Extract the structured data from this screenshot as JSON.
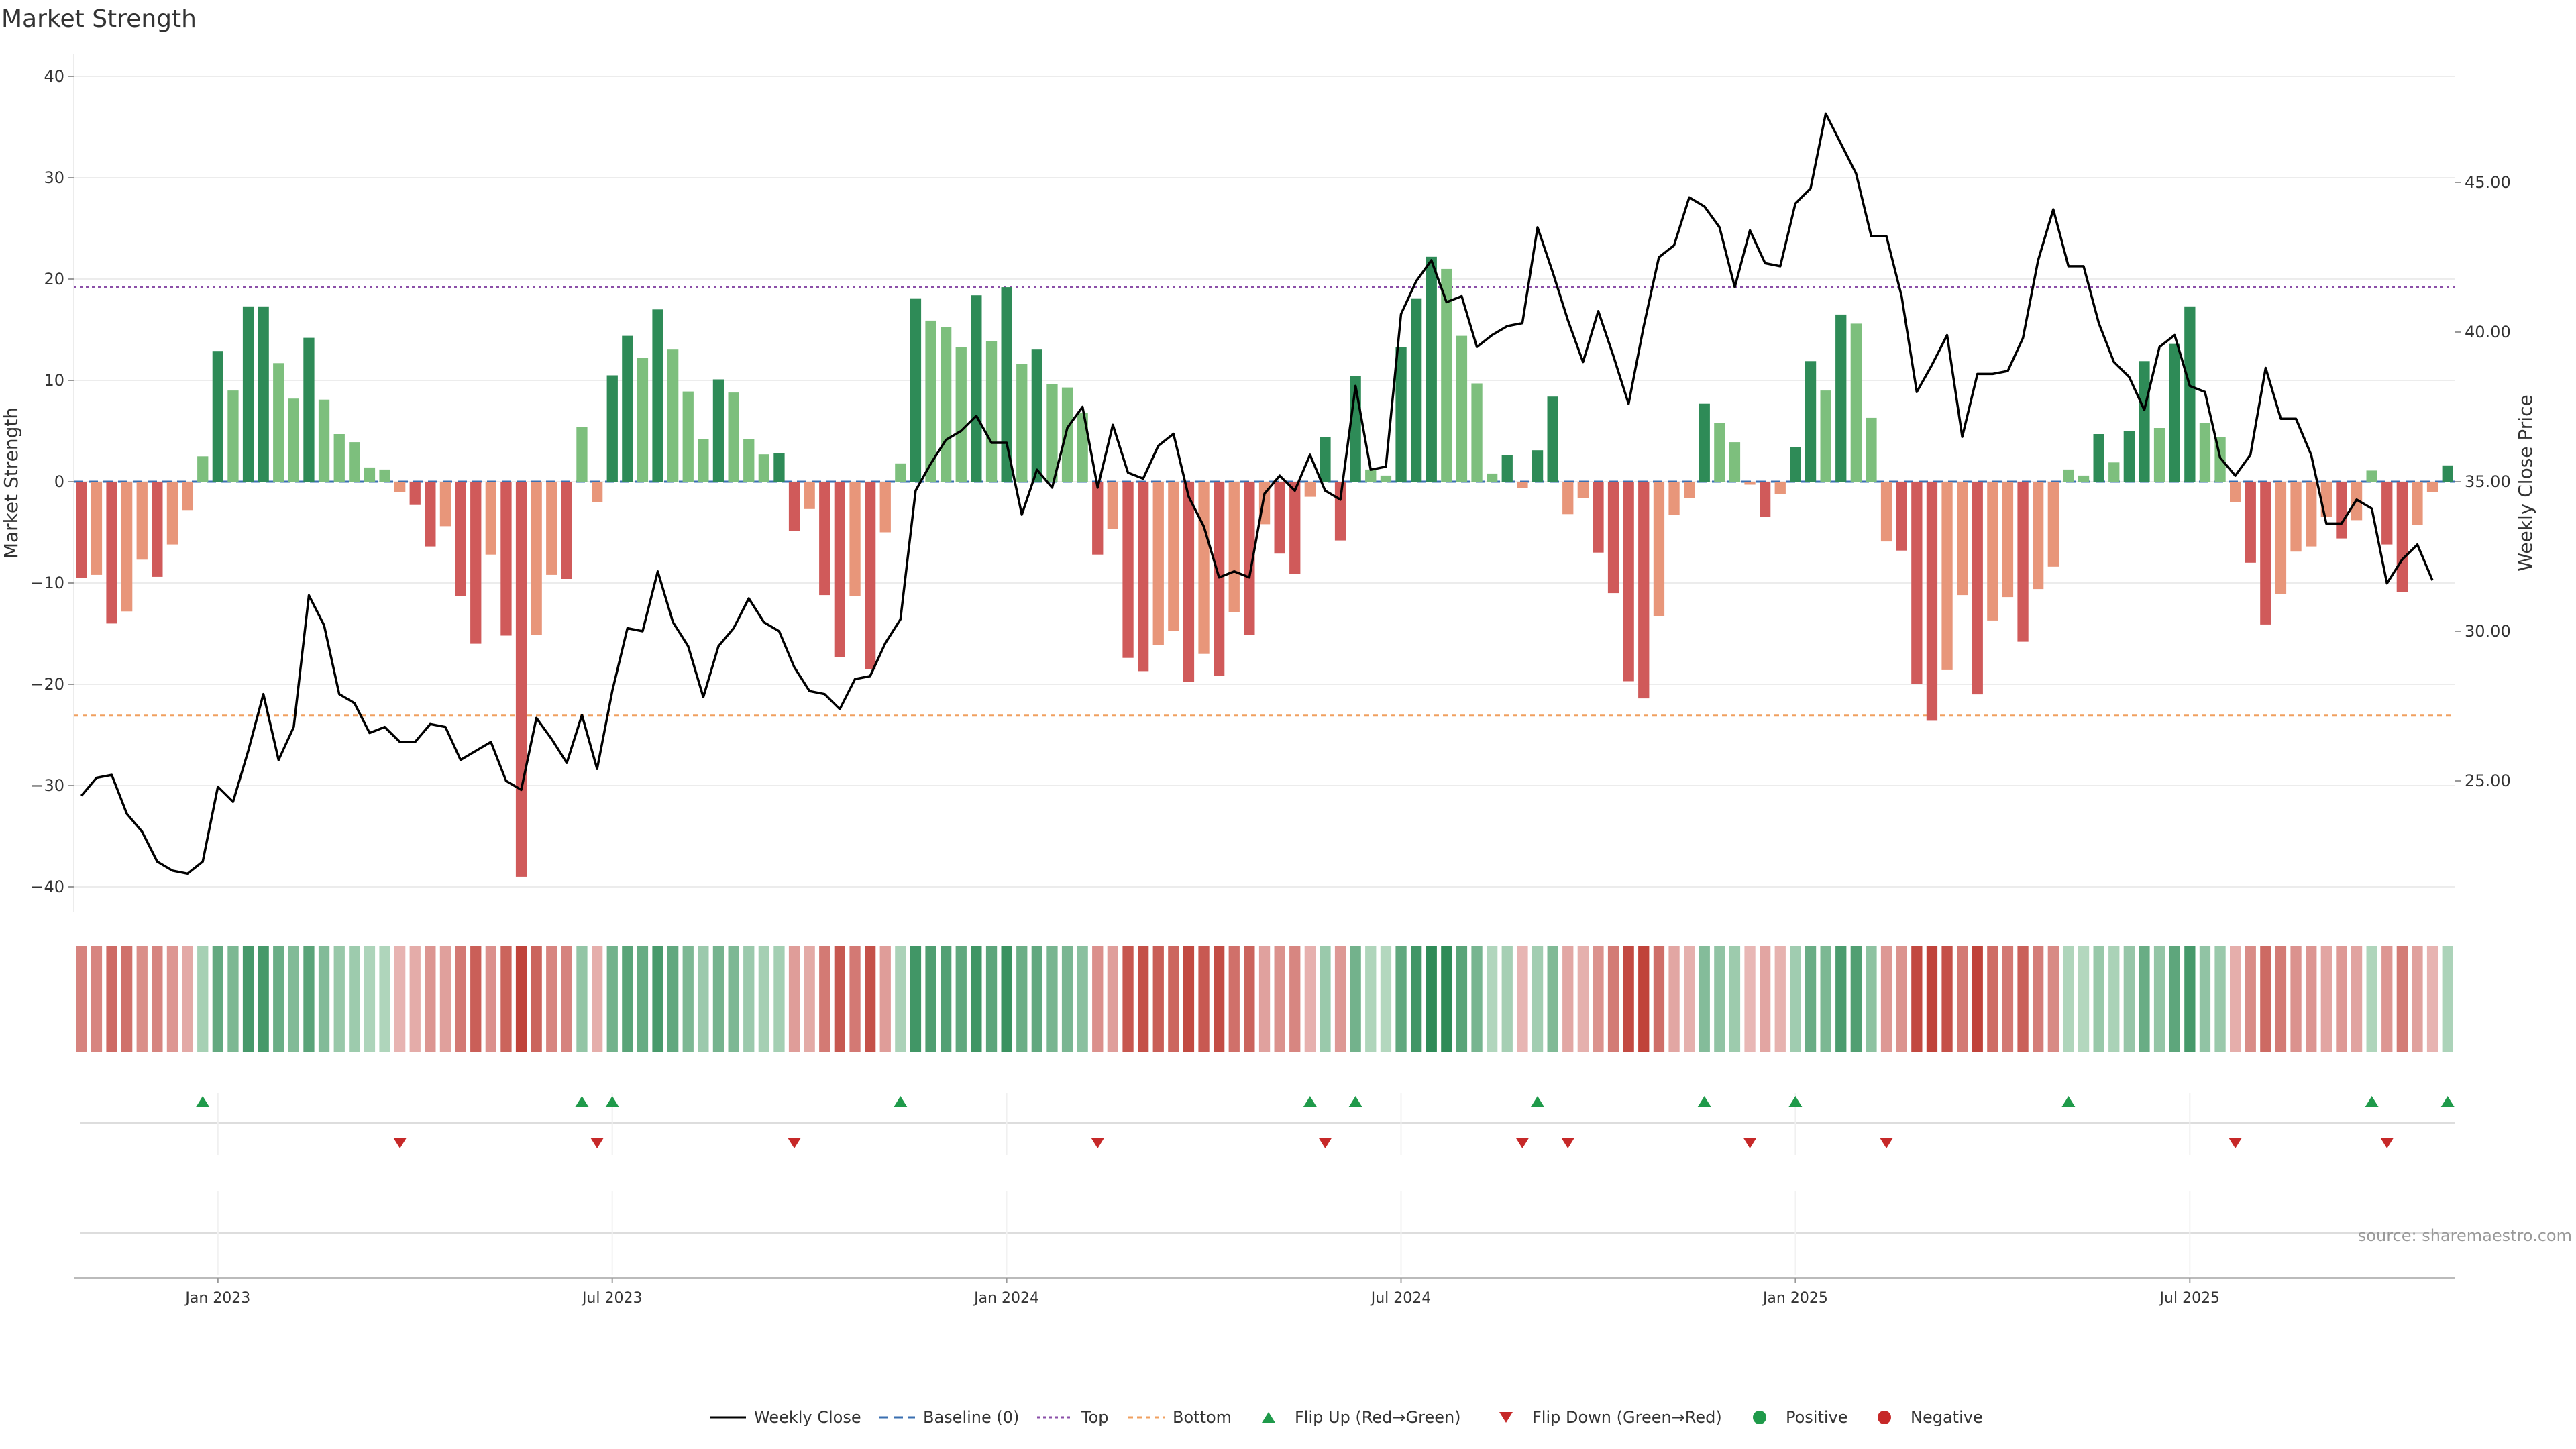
{
  "chart_data": {
    "type": "bar",
    "title": "Market Strength",
    "ylabel_left": "Market Strength",
    "ylabel_right": "Weekly Close Price",
    "ylim_left": [
      -43,
      43
    ],
    "ylim_right": [
      20.3,
      48.8
    ],
    "left_ticks": [
      "40",
      "30",
      "20",
      "10",
      "0",
      "−10",
      "−20",
      "−30",
      "−40"
    ],
    "right_ticks": [
      "45.00",
      "40.00",
      "35.00",
      "30.00",
      "25.00"
    ],
    "x_ticks": [
      "Jan 2023",
      "Jul 2023",
      "Jan 2024",
      "Jul 2024",
      "Jan 2025",
      "Jul 2025"
    ],
    "x_tick_weeks": [
      9,
      35,
      61,
      87,
      113,
      139
    ],
    "top_level": 19.2,
    "bottom_level": -23.1,
    "grid": true,
    "strength": [
      -9.5,
      -9.2,
      -14,
      -12.8,
      -7.7,
      -9.4,
      -6.2,
      -2.8,
      2.5,
      12.9,
      9,
      17.3,
      17.3,
      11.7,
      8.2,
      14.2,
      8.1,
      4.7,
      3.9,
      1.4,
      1.2,
      -1,
      -2.3,
      -6.4,
      -4.4,
      -11.3,
      -16,
      -7.2,
      -15.2,
      -39,
      -15.1,
      -9.2,
      -9.6,
      5.4,
      -2,
      10.5,
      14.4,
      12.2,
      17,
      13.1,
      8.9,
      4.2,
      10.1,
      8.8,
      4.2,
      2.7,
      2.8,
      -4.9,
      -2.7,
      -11.2,
      -17.3,
      -11.3,
      -18.5,
      -5,
      1.8,
      18.1,
      15.9,
      15.3,
      13.3,
      18.4,
      13.9,
      19.2,
      11.6,
      13.1,
      9.6,
      9.3,
      6.8,
      -7.2,
      -4.7,
      -17.4,
      -18.7,
      -16.1,
      -14.7,
      -19.8,
      -17,
      -19.2,
      -12.9,
      -15.1,
      -4.2,
      -7.1,
      -9.1,
      -1.5,
      4.4,
      -5.8,
      10.4,
      1.2,
      0.6,
      13.3,
      18.1,
      22.2,
      21,
      14.4,
      9.7,
      0.8,
      2.6,
      -0.6,
      3.1,
      8.4,
      -3.2,
      -1.6,
      -7,
      -11,
      -19.7,
      -21.4,
      -13.3,
      -3.3,
      -1.6,
      7.7,
      5.8,
      3.9,
      -0.3,
      -3.5,
      -1.2,
      3.4,
      11.9,
      9,
      16.5,
      15.6,
      6.3,
      -5.9,
      -6.8,
      -20,
      -23.6,
      -18.6,
      -11.2,
      -21,
      -13.7,
      -11.4,
      -15.8,
      -10.6,
      -8.4,
      1.2,
      0.6,
      4.7,
      1.9,
      5,
      11.9,
      5.3,
      13.6,
      17.3,
      5.8,
      4.4,
      -2,
      -8,
      -14.1,
      -11.1,
      -6.9,
      -6.4,
      -3.5,
      -5.6,
      -3.8,
      1.1,
      -6.2,
      -10.9,
      -4.3,
      -1,
      1.6
    ],
    "weekly_close": [
      24.5,
      25.1,
      25.2,
      23.9,
      23.3,
      22.3,
      22,
      21.9,
      22.3,
      24.8,
      24.3,
      26,
      27.9,
      25.7,
      26.8,
      31.2,
      30.2,
      27.9,
      27.6,
      26.6,
      26.8,
      26.3,
      26.3,
      26.9,
      26.8,
      25.7,
      26,
      26.3,
      25,
      24.7,
      27.1,
      26.4,
      25.6,
      27.2,
      25.4,
      28,
      30.1,
      30,
      32,
      30.3,
      29.5,
      27.8,
      29.5,
      30.1,
      31.1,
      30.3,
      30,
      28.8,
      28,
      27.9,
      27.4,
      28.4,
      28.5,
      29.6,
      30.4,
      34.7,
      35.6,
      36.4,
      36.7,
      37.2,
      36.3,
      36.3,
      33.9,
      35.4,
      34.8,
      36.8,
      37.5,
      34.8,
      36.9,
      35.3,
      35.1,
      36.2,
      36.6,
      34.5,
      33.5,
      31.8,
      32,
      31.8,
      34.6,
      35.2,
      34.7,
      35.9,
      34.7,
      34.4,
      38.2,
      35.4,
      35.5,
      40.6,
      41.7,
      42.4,
      41,
      41.2,
      39.5,
      39.9,
      40.2,
      40.3,
      43.5,
      42,
      40.4,
      39,
      40.7,
      39.2,
      37.6,
      40.2,
      42.5,
      42.9,
      44.5,
      44.2,
      43.5,
      41.5,
      43.4,
      42.3,
      42.2,
      44.3,
      44.8,
      47.3,
      46.3,
      45.3,
      43.2,
      43.2,
      41.2,
      38,
      38.9,
      39.9,
      36.5,
      38.6,
      38.6,
      38.7,
      39.8,
      42.4,
      44.1,
      42.2,
      42.2,
      40.3,
      39,
      38.5,
      37.4,
      39.5,
      39.9,
      38.2,
      38,
      35.8,
      35.2,
      35.9,
      38.8,
      37.1,
      37.1,
      35.9,
      33.6,
      33.6,
      34.4,
      34.1,
      31.6,
      32.4,
      32.9,
      31.7
    ],
    "flip_up_weeks": [
      8,
      33,
      35,
      54,
      81,
      84,
      96,
      107,
      113,
      131,
      151,
      156
    ],
    "flip_down_weeks": [
      21,
      34,
      47,
      67,
      82,
      95,
      98,
      110,
      119,
      142,
      152
    ],
    "legend": [
      "Weekly Close",
      "Baseline (0)",
      "Top",
      "Bottom",
      "Flip Up (Red→Green)",
      "Flip Down (Green→Red)",
      "Positive",
      "Negative"
    ]
  },
  "colors": {
    "strong_positive": "#2e8b57",
    "weak_positive": "#7dbf7d",
    "strong_negative": "#d05a5a",
    "weak_negative": "#e8967a",
    "top_line": "#8b4fa8",
    "bottom_line": "#f0a060",
    "baseline": "#3a6fb0",
    "price_line": "#000000",
    "flip_up": "#1f9a4a",
    "flip_down": "#c62828"
  },
  "source": "source: sharemaestro.com"
}
